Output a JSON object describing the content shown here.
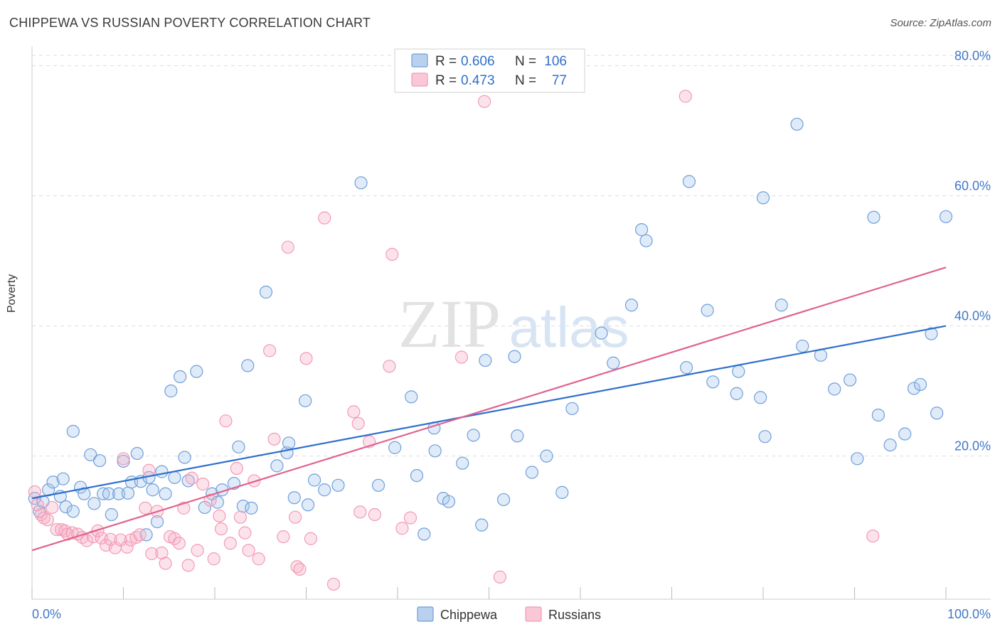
{
  "header": {
    "title": "CHIPPEWA VS RUSSIAN POVERTY CORRELATION CHART",
    "source": "Source: ZipAtlas.com"
  },
  "watermark": {
    "zip": "ZIP",
    "atlas": "atlas"
  },
  "chart_data": {
    "type": "scatter",
    "title": "CHIPPEWA VS RUSSIAN POVERTY CORRELATION CHART",
    "ylabel": "Poverty",
    "xlabel": "",
    "xlim": [
      0,
      100
    ],
    "ylim": [
      -2,
      83
    ],
    "x_tick_labels": [
      "0.0%",
      "100.0%"
    ],
    "y_ticks": [
      20,
      40,
      60,
      80
    ],
    "y_tick_labels": [
      "20.0%",
      "40.0%",
      "60.0%",
      "80.0%"
    ],
    "grid": "horizontal dashed",
    "legend_stats": [
      {
        "r_label": "R = ",
        "r_value": "0.606",
        "n_label": "N = ",
        "n_value": "106"
      },
      {
        "r_label": "R = ",
        "r_value": "0.473",
        "n_label": "N = ",
        "n_value": "77"
      }
    ],
    "series": [
      {
        "name": "Chippewa",
        "color": "#6f9fd8",
        "line_color": "#2f6fcc",
        "trend": [
          [
            0,
            13.5
          ],
          [
            100,
            40.0
          ]
        ],
        "points": [
          [
            0.3,
            13.5
          ],
          [
            0.8,
            11.5
          ],
          [
            1.2,
            13.0
          ],
          [
            1.8,
            14.8
          ],
          [
            2.3,
            16.0
          ],
          [
            3.1,
            13.8
          ],
          [
            3.4,
            16.5
          ],
          [
            3.7,
            12.2
          ],
          [
            4.5,
            11.5
          ],
          [
            4.5,
            23.8
          ],
          [
            5.3,
            15.2
          ],
          [
            5.7,
            14.2
          ],
          [
            6.4,
            20.2
          ],
          [
            6.8,
            12.7
          ],
          [
            7.4,
            19.3
          ],
          [
            7.8,
            14.2
          ],
          [
            8.4,
            14.2
          ],
          [
            8.7,
            11.0
          ],
          [
            9.5,
            14.2
          ],
          [
            10.0,
            19.2
          ],
          [
            10.5,
            14.3
          ],
          [
            10.9,
            16.0
          ],
          [
            11.5,
            20.4
          ],
          [
            11.9,
            16.1
          ],
          [
            12.5,
            7.9
          ],
          [
            12.8,
            16.7
          ],
          [
            13.2,
            14.8
          ],
          [
            13.7,
            9.9
          ],
          [
            14.2,
            17.6
          ],
          [
            14.6,
            14.2
          ],
          [
            15.2,
            30.0
          ],
          [
            15.6,
            16.7
          ],
          [
            16.2,
            32.2
          ],
          [
            16.7,
            19.8
          ],
          [
            17.1,
            16.2
          ],
          [
            18.0,
            33.0
          ],
          [
            18.9,
            12.1
          ],
          [
            19.7,
            14.2
          ],
          [
            20.3,
            12.9
          ],
          [
            20.8,
            14.8
          ],
          [
            22.1,
            15.8
          ],
          [
            22.6,
            21.4
          ],
          [
            23.1,
            12.3
          ],
          [
            23.6,
            33.9
          ],
          [
            24.0,
            12.0
          ],
          [
            25.6,
            45.2
          ],
          [
            26.8,
            18.5
          ],
          [
            27.9,
            20.5
          ],
          [
            28.1,
            22.0
          ],
          [
            28.7,
            13.6
          ],
          [
            29.9,
            28.5
          ],
          [
            30.2,
            12.5
          ],
          [
            30.9,
            16.3
          ],
          [
            32.0,
            14.8
          ],
          [
            33.5,
            15.5
          ],
          [
            36.0,
            62.0
          ],
          [
            37.9,
            15.5
          ],
          [
            39.7,
            21.3
          ],
          [
            41.5,
            29.1
          ],
          [
            42.1,
            17.0
          ],
          [
            42.9,
            8.0
          ],
          [
            44.0,
            24.3
          ],
          [
            44.1,
            20.8
          ],
          [
            45.0,
            13.5
          ],
          [
            45.6,
            13.0
          ],
          [
            47.1,
            18.9
          ],
          [
            48.3,
            23.2
          ],
          [
            49.2,
            9.4
          ],
          [
            49.6,
            34.7
          ],
          [
            51.6,
            13.3
          ],
          [
            52.8,
            35.3
          ],
          [
            53.1,
            23.1
          ],
          [
            54.7,
            17.5
          ],
          [
            56.3,
            20.0
          ],
          [
            58.0,
            14.4
          ],
          [
            59.1,
            27.3
          ],
          [
            62.3,
            38.9
          ],
          [
            63.6,
            34.3
          ],
          [
            65.6,
            43.2
          ],
          [
            66.7,
            54.8
          ],
          [
            67.2,
            53.1
          ],
          [
            71.6,
            33.6
          ],
          [
            71.9,
            62.2
          ],
          [
            73.9,
            42.4
          ],
          [
            74.5,
            31.4
          ],
          [
            77.1,
            29.6
          ],
          [
            77.3,
            33.0
          ],
          [
            79.7,
            29.0
          ],
          [
            80.0,
            59.7
          ],
          [
            80.2,
            23.0
          ],
          [
            82.0,
            43.2
          ],
          [
            83.7,
            71.0
          ],
          [
            84.3,
            36.9
          ],
          [
            86.3,
            35.5
          ],
          [
            87.8,
            30.3
          ],
          [
            89.5,
            31.7
          ],
          [
            90.3,
            19.6
          ],
          [
            92.1,
            56.7
          ],
          [
            92.6,
            26.3
          ],
          [
            93.9,
            21.7
          ],
          [
            95.5,
            23.4
          ],
          [
            96.5,
            30.4
          ],
          [
            97.2,
            31.0
          ],
          [
            98.4,
            38.8
          ],
          [
            99.0,
            26.6
          ],
          [
            100.0,
            56.8
          ]
        ]
      },
      {
        "name": "Russians",
        "color": "#f29bb5",
        "line_color": "#e0628e",
        "trend": [
          [
            0,
            5.5
          ],
          [
            100,
            49.0
          ]
        ],
        "points": [
          [
            0.3,
            14.5
          ],
          [
            0.6,
            12.5
          ],
          [
            1.0,
            11.0
          ],
          [
            1.3,
            10.5
          ],
          [
            1.7,
            10.2
          ],
          [
            2.2,
            12.1
          ],
          [
            2.7,
            8.7
          ],
          [
            3.2,
            8.7
          ],
          [
            3.6,
            8.5
          ],
          [
            3.9,
            8.0
          ],
          [
            4.4,
            8.2
          ],
          [
            5.0,
            8.0
          ],
          [
            5.5,
            7.5
          ],
          [
            6.0,
            7.0
          ],
          [
            6.7,
            7.6
          ],
          [
            7.2,
            8.5
          ],
          [
            7.6,
            7.4
          ],
          [
            8.1,
            6.3
          ],
          [
            8.6,
            7.2
          ],
          [
            9.1,
            5.9
          ],
          [
            9.7,
            7.1
          ],
          [
            10.0,
            19.6
          ],
          [
            10.4,
            6.0
          ],
          [
            10.8,
            7.1
          ],
          [
            11.4,
            7.5
          ],
          [
            11.8,
            7.9
          ],
          [
            12.4,
            12.0
          ],
          [
            12.8,
            17.8
          ],
          [
            13.1,
            5.0
          ],
          [
            13.7,
            11.5
          ],
          [
            14.2,
            5.1
          ],
          [
            14.6,
            3.5
          ],
          [
            15.1,
            7.6
          ],
          [
            15.6,
            7.3
          ],
          [
            16.1,
            6.6
          ],
          [
            16.6,
            12.0
          ],
          [
            17.1,
            3.2
          ],
          [
            17.5,
            16.6
          ],
          [
            18.1,
            5.5
          ],
          [
            18.7,
            15.7
          ],
          [
            19.5,
            13.2
          ],
          [
            19.9,
            4.2
          ],
          [
            20.5,
            10.8
          ],
          [
            20.7,
            8.8
          ],
          [
            21.2,
            25.4
          ],
          [
            21.7,
            6.6
          ],
          [
            22.4,
            18.1
          ],
          [
            22.8,
            10.6
          ],
          [
            23.3,
            8.2
          ],
          [
            23.7,
            5.5
          ],
          [
            24.3,
            16.2
          ],
          [
            24.8,
            4.2
          ],
          [
            26.0,
            36.2
          ],
          [
            26.5,
            22.6
          ],
          [
            27.5,
            7.6
          ],
          [
            28.0,
            52.1
          ],
          [
            28.8,
            10.6
          ],
          [
            29.0,
            3.0
          ],
          [
            29.3,
            2.6
          ],
          [
            30.0,
            35.0
          ],
          [
            30.5,
            7.3
          ],
          [
            32.0,
            56.6
          ],
          [
            33.0,
            0.3
          ],
          [
            35.2,
            26.8
          ],
          [
            35.7,
            25.0
          ],
          [
            35.9,
            11.4
          ],
          [
            36.9,
            22.2
          ],
          [
            37.5,
            11.0
          ],
          [
            39.1,
            33.8
          ],
          [
            39.4,
            51.0
          ],
          [
            40.5,
            8.9
          ],
          [
            41.4,
            10.5
          ],
          [
            47.0,
            35.2
          ],
          [
            49.5,
            74.5
          ],
          [
            51.2,
            1.4
          ],
          [
            71.5,
            75.3
          ],
          [
            92.0,
            7.7
          ]
        ]
      }
    ]
  }
}
